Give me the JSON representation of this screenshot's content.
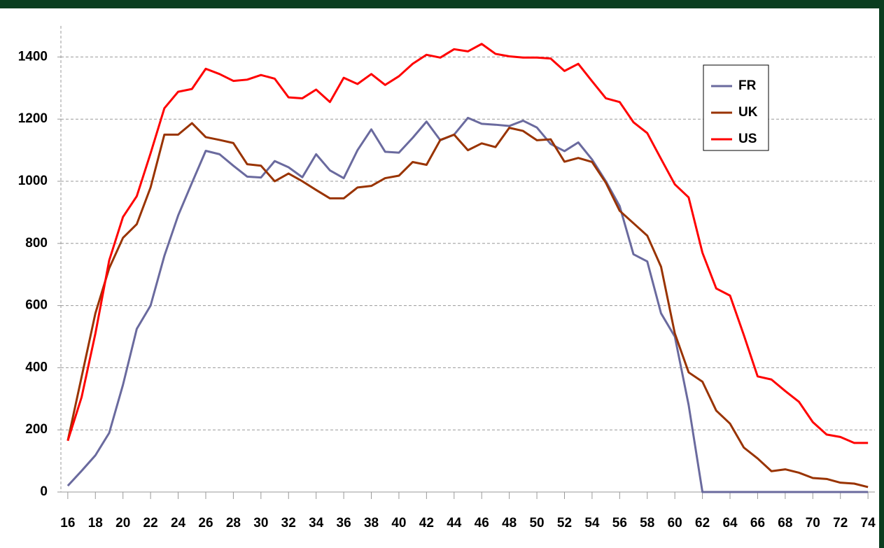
{
  "chart_data": {
    "type": "line",
    "x": [
      16,
      17,
      18,
      19,
      20,
      21,
      22,
      23,
      24,
      25,
      26,
      27,
      28,
      29,
      30,
      31,
      32,
      33,
      34,
      35,
      36,
      37,
      38,
      39,
      40,
      41,
      42,
      43,
      44,
      45,
      46,
      47,
      48,
      49,
      50,
      51,
      52,
      53,
      54,
      55,
      56,
      57,
      58,
      59,
      60,
      61,
      62,
      63,
      64,
      65,
      66,
      67,
      68,
      69,
      70,
      71,
      72,
      73,
      74
    ],
    "series": [
      {
        "name": "FR",
        "color": "#6a6a9e",
        "values": [
          20,
          68,
          118,
          190,
          345,
          525,
          600,
          760,
          890,
          995,
          1098,
          1087,
          1050,
          1015,
          1012,
          1065,
          1045,
          1013,
          1087,
          1035,
          1010,
          1100,
          1167,
          1095,
          1092,
          1140,
          1192,
          1132,
          1150,
          1204,
          1185,
          1182,
          1178,
          1195,
          1173,
          1120,
          1097,
          1125,
          1070,
          1000,
          920,
          765,
          742,
          575,
          500,
          280,
          0,
          0,
          0,
          0,
          0,
          0,
          0,
          0,
          0,
          0,
          0,
          0,
          0
        ]
      },
      {
        "name": "UK",
        "color": "#993300",
        "values": [
          165,
          370,
          575,
          720,
          818,
          862,
          980,
          1150,
          1150,
          1187,
          1142,
          1133,
          1123,
          1055,
          1050,
          1000,
          1025,
          1000,
          972,
          945,
          945,
          980,
          985,
          1010,
          1018,
          1062,
          1053,
          1133,
          1150,
          1100,
          1122,
          1110,
          1172,
          1162,
          1132,
          1135,
          1063,
          1075,
          1062,
          995,
          905,
          865,
          825,
          725,
          510,
          385,
          355,
          262,
          220,
          143,
          108,
          67,
          73,
          62,
          45,
          42,
          30,
          27,
          16
        ]
      },
      {
        "name": "US",
        "color": "#ff0000",
        "values": [
          165,
          305,
          510,
          745,
          885,
          952,
          1090,
          1235,
          1288,
          1297,
          1362,
          1345,
          1323,
          1327,
          1342,
          1330,
          1270,
          1267,
          1295,
          1255,
          1333,
          1313,
          1345,
          1310,
          1338,
          1378,
          1407,
          1398,
          1425,
          1418,
          1442,
          1410,
          1402,
          1398,
          1398,
          1395,
          1355,
          1378,
          1322,
          1267,
          1255,
          1190,
          1155,
          1072,
          990,
          948,
          770,
          655,
          632,
          505,
          372,
          362,
          325,
          290,
          225,
          185,
          177,
          158,
          158
        ]
      }
    ],
    "xlim": [
      15.5,
      74.5
    ],
    "xticks": [
      16,
      18,
      20,
      22,
      24,
      26,
      28,
      30,
      32,
      34,
      36,
      38,
      40,
      42,
      44,
      46,
      48,
      50,
      52,
      54,
      56,
      58,
      60,
      62,
      64,
      66,
      68,
      70,
      72,
      74
    ],
    "ylim": [
      0,
      1500
    ],
    "yticks": [
      0,
      200,
      400,
      600,
      800,
      1000,
      1200,
      1400
    ],
    "grid": true,
    "legend": "upper right"
  }
}
